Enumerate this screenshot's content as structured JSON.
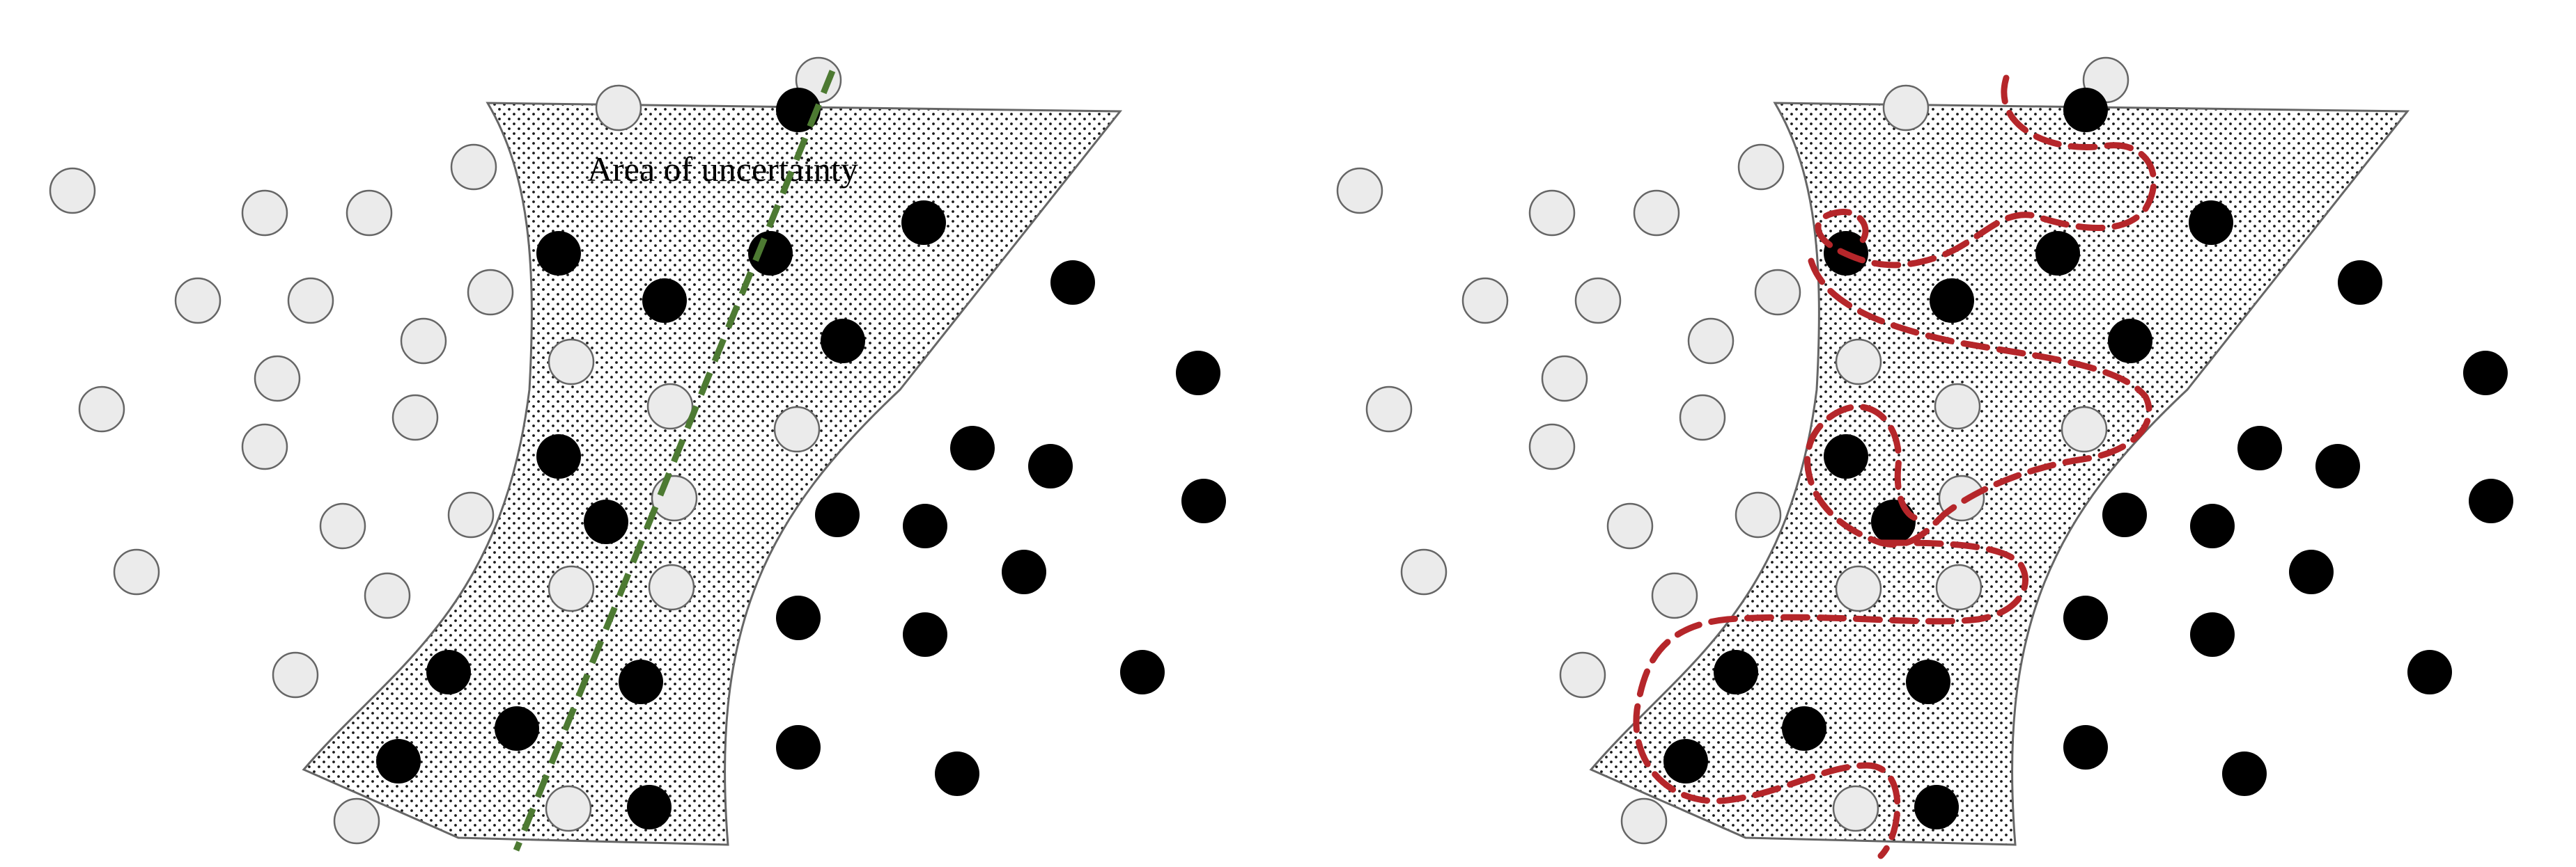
{
  "annotation": "Area of uncertainty",
  "colors": {
    "region_outline": "#666666",
    "stipple": "#1a1a1a",
    "class_white_fill": "#ebebeb",
    "class_white_stroke": "#666666",
    "class_black_fill": "#000000",
    "linear_boundary": "#4d7a32",
    "complex_boundary": "#b5262a"
  },
  "panels": [
    {
      "id": "left",
      "description_key": "linear-boundary-panel",
      "white_points": 28,
      "black_points": 28,
      "boundary_style": "green-dashed-line"
    },
    {
      "id": "right",
      "description_key": "complex-boundary-panel",
      "white_points": 28,
      "black_points": 28,
      "boundary_style": "red-dashed-curves"
    }
  ]
}
